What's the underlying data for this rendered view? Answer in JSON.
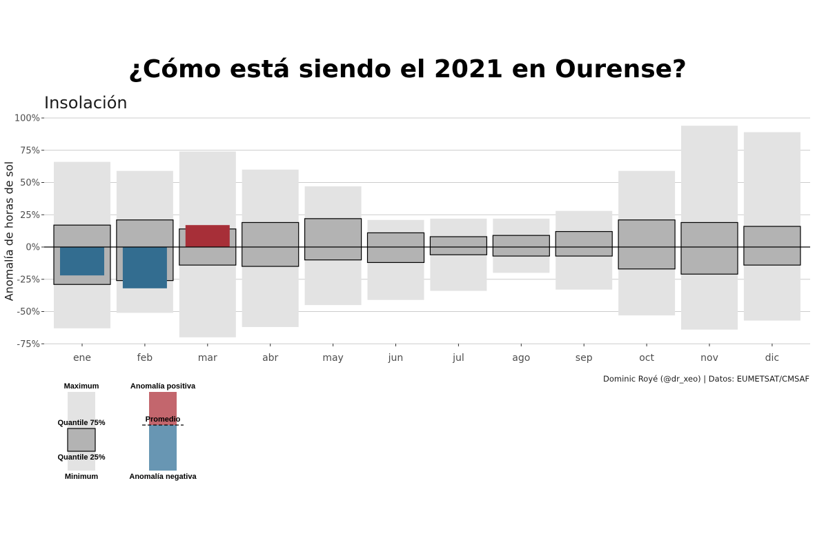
{
  "title": "¿Cómo está siendo el 2021 en Ourense?",
  "subtitle": "Insolación",
  "caption": "Dominic Royé (@dr_xeo) | Datos: EUMETSAT/CMSAF",
  "chart_data": {
    "type": "bar",
    "ylabel": "Anomalía de horas de sol",
    "xlabel": "",
    "ylim": [
      -0.75,
      1.0
    ],
    "yticks": [
      -0.75,
      -0.5,
      -0.25,
      0,
      0.25,
      0.5,
      0.75,
      1.0
    ],
    "ytick_labels": [
      "-75%",
      "-50%",
      "-25%",
      "0%",
      "25%",
      "50%",
      "75%",
      "100%"
    ],
    "categories": [
      "ene",
      "feb",
      "mar",
      "abr",
      "may",
      "jun",
      "jul",
      "ago",
      "sep",
      "oct",
      "nov",
      "dic"
    ],
    "series": [
      {
        "key": "minimum",
        "values": [
          -0.63,
          -0.51,
          -0.7,
          -0.62,
          -0.45,
          -0.41,
          -0.34,
          -0.2,
          -0.33,
          -0.53,
          -0.64,
          -0.57
        ]
      },
      {
        "key": "maximum",
        "values": [
          0.66,
          0.59,
          0.74,
          0.6,
          0.47,
          0.21,
          0.22,
          0.22,
          0.28,
          0.59,
          0.94,
          0.89
        ]
      },
      {
        "key": "quantile_25",
        "values": [
          -0.29,
          -0.26,
          -0.14,
          -0.15,
          -0.1,
          -0.12,
          -0.06,
          -0.07,
          -0.07,
          -0.17,
          -0.21,
          -0.14
        ]
      },
      {
        "key": "quantile_75",
        "values": [
          0.17,
          0.21,
          0.14,
          0.19,
          0.22,
          0.11,
          0.08,
          0.09,
          0.12,
          0.21,
          0.19,
          0.16
        ]
      },
      {
        "key": "anomaly_2021",
        "values": [
          -0.22,
          -0.32,
          0.17,
          null,
          null,
          null,
          null,
          null,
          null,
          null,
          null,
          null
        ]
      }
    ],
    "colors": {
      "range": "#e3e3e3",
      "quantile_box": "#b3b3b3",
      "positive": "#a72f38",
      "negative": "#336d90",
      "legend_positive": "#c3666d",
      "legend_negative": "#6896b3",
      "grid": "#cccccc"
    },
    "grid": true,
    "legend": {
      "position": "bottom-left",
      "maximum": "Maximum",
      "quantile_75": "Quantile 75%",
      "quantile_25": "Quantile 25%",
      "minimum": "Minimum",
      "positive": "Anomalía positiva",
      "average": "Promedio",
      "negative": "Anomalía negativa"
    }
  }
}
